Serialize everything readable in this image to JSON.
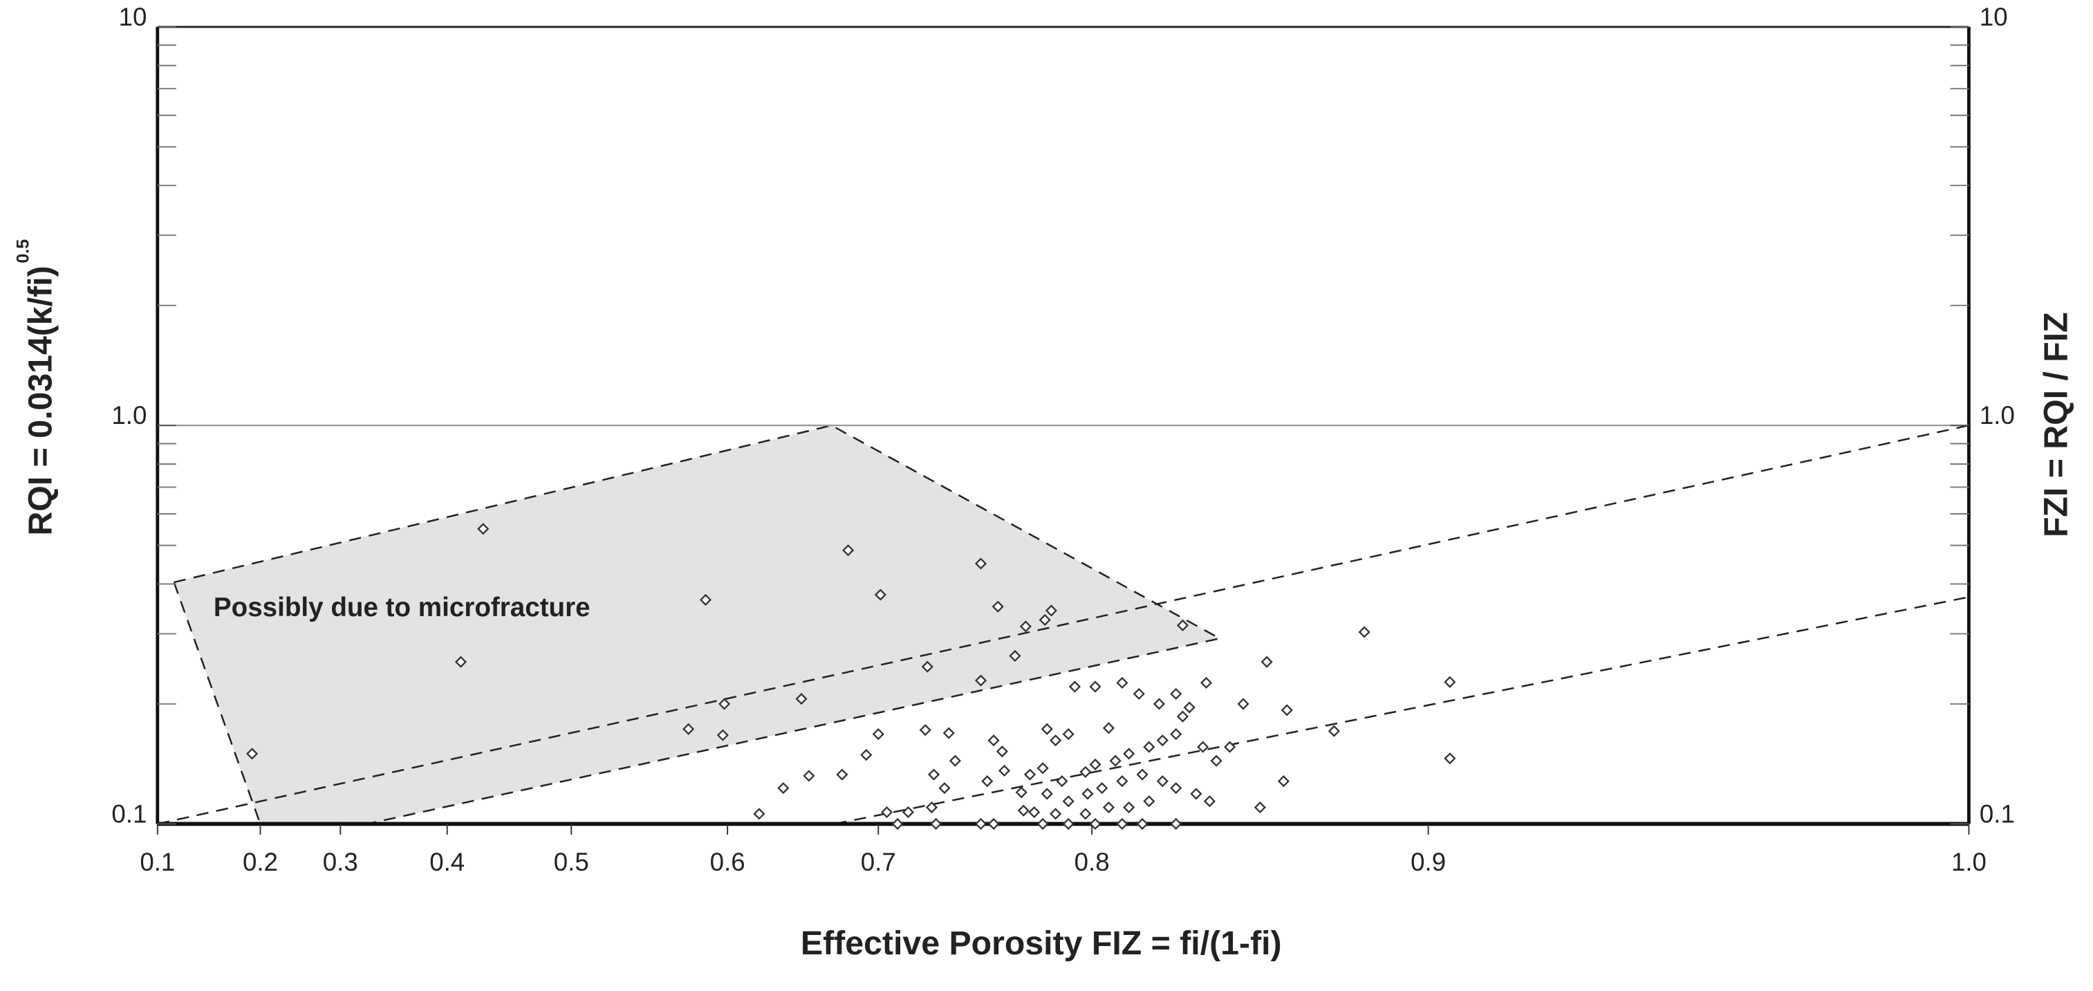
{
  "chart_data": {
    "type": "scatter",
    "xlabel": "Effective Porosity FIZ = fi/(1-fi)",
    "ylabel": "RQI = 0.0314(k/fi)",
    "ylabel_superscript": "0.5",
    "y2label": "FZI = RQI / FIZ",
    "annotation": "Possibly due to microfracture",
    "yscale": "log",
    "xlim": [
      0.1,
      1.0
    ],
    "xticks": [
      0.1,
      0.2,
      0.3,
      0.4,
      0.5,
      0.6,
      0.7,
      0.8,
      0.9,
      {
        "value": 1.0,
        "label": "1.0"
      }
    ],
    "ylim": [
      0.1,
      10
    ],
    "yticks": [
      0.1,
      {
        "value": 1,
        "label": "1.0"
      },
      10
    ],
    "y2lim": [
      0.1,
      10
    ],
    "y2ticks": [
      0.1,
      {
        "value": 1,
        "label": "1.0"
      },
      10
    ],
    "yminorticks": [
      0.2,
      0.3,
      0.4,
      0.5,
      0.6,
      0.7,
      0.8,
      0.9,
      2,
      3,
      4,
      5,
      6,
      7,
      8,
      9
    ],
    "gridlines_y": [
      1
    ],
    "marker_color": "#333333",
    "region_color": "#e3e3e3",
    "region": {
      "x": [
        0.116,
        0.669,
        0.838,
        0.325,
        0.2
      ],
      "y": [
        0.404,
        1.0,
        0.292,
        0.1,
        0.1
      ]
    },
    "lines": [
      {
        "x": [
          0.1,
          1.0
        ],
        "y": [
          0.1,
          1.0
        ]
      },
      {
        "x": [
          0.671,
          1.0
        ],
        "y": [
          0.1,
          0.371
        ]
      }
    ],
    "x": [
      0.192,
      0.411,
      0.429,
      0.586,
      0.575,
      0.598,
      0.597,
      0.649,
      0.68,
      0.701,
      0.723,
      0.748,
      0.756,
      0.748,
      0.769,
      0.764,
      0.781,
      0.778,
      0.827,
      0.881,
      0.904,
      0.904,
      0.872,
      0.852,
      0.834,
      0.858,
      0.845,
      0.857,
      0.85,
      0.621,
      0.637,
      0.654,
      0.676,
      0.692,
      0.7,
      0.722,
      0.733,
      0.736,
      0.726,
      0.731,
      0.725,
      0.704,
      0.714,
      0.709,
      0.727,
      0.748,
      0.754,
      0.754,
      0.758,
      0.759,
      0.751,
      0.767,
      0.768,
      0.779,
      0.783,
      0.789,
      0.792,
      0.801,
      0.805,
      0.809,
      0.814,
      0.82,
      0.825,
      0.829,
      0.827,
      0.825,
      0.821,
      0.817,
      0.811,
      0.807,
      0.801,
      0.797,
      0.786,
      0.779,
      0.789,
      0.798,
      0.803,
      0.809,
      0.815,
      0.821,
      0.825,
      0.831,
      0.835,
      0.837,
      0.833,
      0.841,
      0.817,
      0.811,
      0.805,
      0.797,
      0.783,
      0.773,
      0.777,
      0.789,
      0.801,
      0.809,
      0.815,
      0.825,
      0.777,
      0.771
    ],
    "series": [
      {
        "name": "samples",
        "values": [
          0.15,
          0.255,
          0.55,
          0.365,
          0.173,
          0.2,
          0.167,
          0.206,
          0.486,
          0.376,
          0.248,
          0.45,
          0.351,
          0.229,
          0.313,
          0.264,
          0.343,
          0.325,
          0.315,
          0.303,
          0.227,
          0.146,
          0.171,
          0.255,
          0.226,
          0.193,
          0.2,
          0.128,
          0.11,
          0.106,
          0.123,
          0.132,
          0.133,
          0.149,
          0.168,
          0.172,
          0.169,
          0.144,
          0.133,
          0.123,
          0.11,
          0.107,
          0.107,
          0.1,
          0.1,
          0.1,
          0.1,
          0.162,
          0.152,
          0.136,
          0.128,
          0.12,
          0.108,
          0.173,
          0.162,
          0.168,
          0.221,
          0.221,
          0.174,
          0.226,
          0.212,
          0.2,
          0.212,
          0.196,
          0.186,
          0.168,
          0.162,
          0.156,
          0.15,
          0.144,
          0.141,
          0.135,
          0.128,
          0.119,
          0.114,
          0.119,
          0.123,
          0.128,
          0.133,
          0.128,
          0.123,
          0.119,
          0.114,
          0.144,
          0.156,
          0.156,
          0.114,
          0.11,
          0.11,
          0.106,
          0.106,
          0.107,
          0.1,
          0.1,
          0.1,
          0.1,
          0.1,
          0.1,
          0.138,
          0.133
        ]
      }
    ]
  }
}
